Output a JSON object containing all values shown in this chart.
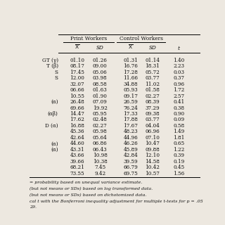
{
  "title_left": "Print Workers",
  "title_right": "Control Workers",
  "row_labels": [
    "GT (γ)",
    "T (β)",
    "S",
    "S",
    "",
    "",
    "",
    "(α)",
    "",
    "(αβ)",
    "",
    "D (α)",
    "",
    "",
    "(α)",
    "(α)",
    "",
    "",
    "",
    ""
  ],
  "rows": [
    [
      "01.10",
      "01.26",
      "01.31",
      "01.14",
      "1.40"
    ],
    [
      "08.17",
      "09.00",
      "16.76",
      "18.31",
      "2.23"
    ],
    [
      "17.45",
      "05.06",
      "17.28",
      "05.72",
      "0.03"
    ],
    [
      "12.00",
      "03.98",
      "11.66",
      "03.77",
      "0.37"
    ],
    [
      "32.07",
      "08.58",
      "34.88",
      "11.02",
      "0.96"
    ],
    [
      "06.66",
      "01.63",
      "05.93",
      "01.58",
      "1.72"
    ],
    [
      "10.55",
      "01.90",
      "09.17",
      "02.27",
      "2.57"
    ],
    [
      "26.48",
      "07.09",
      "26.59",
      "08.39",
      "0.41"
    ],
    [
      "69.66",
      "19.92",
      "76.24",
      "37.29",
      "0.38"
    ],
    [
      "14.47",
      "05.95",
      "17.33",
      "09.38",
      "0.90"
    ],
    [
      "17.62",
      "02.48",
      "17.88",
      "03.77",
      "0.09"
    ],
    [
      "16.88",
      "02.27",
      "17.67",
      "04.04",
      "0.58"
    ],
    [
      "45.36",
      "05.98",
      "48.23",
      "06.96",
      "1.49"
    ],
    [
      "42.64",
      "05.64",
      "44.96",
      "07.10",
      "1.81"
    ],
    [
      "44.60",
      "06.86",
      "46.26",
      "10.47",
      "0.65"
    ],
    [
      "43.31",
      "06.43",
      "45.89",
      "09.88",
      "1.22"
    ],
    [
      "43.66",
      "10.98",
      "42.84",
      "12.10",
      "0.39"
    ],
    [
      "39.66",
      "10.38",
      "39.59",
      "14.58",
      "0.19"
    ],
    [
      "68.21",
      "7.45",
      "66.79",
      "10.42",
      "0.45"
    ],
    [
      "73.55",
      "9.42",
      "69.75",
      "10.57",
      "1.56"
    ]
  ],
  "footnotes": [
    "= probability based on unequal variance estimate.",
    "(but not means or ΣDs) based on log transformed data.",
    "(but not means or ΣDs) based on dichotomized data.",
    "cal t with the Bonferroni inequality adjustment for multiple t-tests for p = .05",
    "29."
  ],
  "bg_color": "#ede8e0"
}
